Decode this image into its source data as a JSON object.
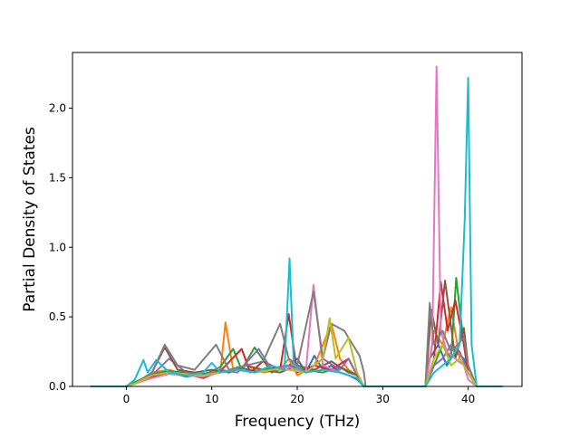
{
  "chart_data": {
    "type": "line",
    "title": "",
    "xlabel": "Frequency (THz)",
    "ylabel": "Partial Density of States",
    "xlim": [
      -6.3,
      46.3
    ],
    "ylim": [
      0,
      2.4
    ],
    "xticks": [
      0,
      10,
      20,
      30,
      40
    ],
    "yticks": [
      0.0,
      0.5,
      1.0,
      1.5,
      2.0
    ],
    "xtick_labels": [
      "0",
      "10",
      "20",
      "30",
      "40"
    ],
    "ytick_labels": [
      "0.0",
      "0.5",
      "1.0",
      "1.5",
      "2.0"
    ],
    "grid": false,
    "legend": "none",
    "colors": [
      "#1f77b4",
      "#ff7f0e",
      "#2ca02c",
      "#d62728",
      "#9467bd",
      "#8c564b",
      "#e377c2",
      "#7f7f7f",
      "#bcbd22",
      "#17becf"
    ],
    "series": [
      {
        "color": "#1f77b4",
        "x": [
          -4.2,
          0,
          1,
          3,
          5,
          7,
          9,
          11,
          12,
          13,
          15,
          17,
          19,
          20,
          21,
          22,
          23,
          24,
          25,
          26,
          27,
          27.8,
          28,
          35,
          35.5,
          36.5,
          37.5,
          38.5,
          39.5,
          40,
          41,
          44
        ],
        "y": [
          0,
          0,
          0.03,
          0.08,
          0.1,
          0.07,
          0.09,
          0.12,
          0.1,
          0.14,
          0.11,
          0.13,
          0.15,
          0.2,
          0.1,
          0.22,
          0.12,
          0.15,
          0.1,
          0.08,
          0.05,
          0,
          0,
          0,
          0.2,
          0.3,
          0.15,
          0.25,
          0.2,
          0.1,
          0,
          0
        ]
      },
      {
        "color": "#ff7f0e",
        "x": [
          -4.2,
          0,
          1,
          3,
          5,
          7,
          9,
          11,
          11.6,
          12.5,
          14,
          16,
          18,
          19,
          20,
          22,
          24,
          25,
          26,
          27,
          27.8,
          28,
          35,
          36,
          37,
          38,
          39,
          40,
          41,
          44
        ],
        "y": [
          0,
          0,
          0.02,
          0.1,
          0.12,
          0.08,
          0.07,
          0.1,
          0.46,
          0.12,
          0.15,
          0.1,
          0.12,
          0.2,
          0.08,
          0.15,
          0.45,
          0.2,
          0.12,
          0.08,
          0,
          0,
          0,
          0.4,
          0.3,
          0.57,
          0.2,
          0.1,
          0,
          0
        ]
      },
      {
        "color": "#2ca02c",
        "x": [
          -4.2,
          0,
          1,
          3,
          5,
          7,
          9,
          11,
          12.5,
          13.5,
          15,
          17,
          19,
          21,
          23,
          25,
          27,
          27.8,
          28,
          35,
          36,
          37,
          38,
          38.6,
          39.5,
          40,
          41,
          44
        ],
        "y": [
          0,
          0,
          0.03,
          0.09,
          0.11,
          0.1,
          0.08,
          0.14,
          0.27,
          0.12,
          0.28,
          0.1,
          0.15,
          0.12,
          0.1,
          0.14,
          0.08,
          0,
          0,
          0,
          0.15,
          0.3,
          0.2,
          0.78,
          0.3,
          0.1,
          0,
          0
        ]
      },
      {
        "color": "#d62728",
        "x": [
          -4.2,
          0,
          1,
          3,
          5,
          7,
          9,
          11,
          13.5,
          14.5,
          16,
          18,
          19,
          20,
          22,
          24,
          26,
          27,
          27.8,
          28,
          35,
          36,
          36.8,
          37.6,
          38.5,
          39.5,
          40,
          41,
          44
        ],
        "y": [
          0,
          0,
          0.02,
          0.07,
          0.1,
          0.09,
          0.06,
          0.11,
          0.27,
          0.1,
          0.18,
          0.12,
          0.52,
          0.1,
          0.15,
          0.12,
          0.2,
          0.08,
          0,
          0,
          0,
          0.2,
          0.75,
          0.4,
          0.62,
          0.3,
          0.1,
          0,
          0
        ]
      },
      {
        "color": "#9467bd",
        "x": [
          -4.2,
          0,
          1,
          3,
          5,
          7,
          9,
          11,
          13,
          15.5,
          17,
          19,
          21,
          23,
          25,
          26,
          27,
          27.8,
          28,
          35,
          36,
          37,
          38,
          39,
          40,
          41,
          44
        ],
        "y": [
          0,
          0,
          0.02,
          0.08,
          0.2,
          0.1,
          0.08,
          0.12,
          0.1,
          0.27,
          0.12,
          0.15,
          0.1,
          0.2,
          0.12,
          0.2,
          0.08,
          0,
          0,
          0,
          0.15,
          0.2,
          0.3,
          0.25,
          0.1,
          0,
          0
        ]
      },
      {
        "color": "#8c564b",
        "x": [
          -4.2,
          0,
          1,
          3,
          4.5,
          6,
          8,
          10,
          12,
          14,
          16,
          18,
          20,
          22,
          24,
          26,
          27,
          27.8,
          28,
          35,
          35.7,
          36.5,
          37.3,
          38.5,
          39.5,
          40,
          41,
          44
        ],
        "y": [
          0,
          0,
          0.02,
          0.1,
          0.28,
          0.12,
          0.1,
          0.12,
          0.1,
          0.15,
          0.12,
          0.1,
          0.15,
          0.12,
          0.18,
          0.1,
          0.08,
          0,
          0,
          0,
          0.55,
          0.3,
          0.76,
          0.2,
          0.42,
          0.15,
          0,
          0
        ]
      },
      {
        "color": "#e377c2",
        "x": [
          -4.2,
          0,
          1,
          3,
          5,
          7,
          9,
          11,
          13,
          15,
          17,
          19,
          21,
          21.9,
          23,
          25,
          27,
          27.8,
          28,
          35,
          35.8,
          36.3,
          36.8,
          37.5,
          38.5,
          39.5,
          40,
          41,
          44
        ],
        "y": [
          0,
          0,
          0.02,
          0.06,
          0.09,
          0.08,
          0.07,
          0.1,
          0.12,
          0.1,
          0.12,
          0.14,
          0.1,
          0.73,
          0.15,
          0.1,
          0.06,
          0,
          0,
          0,
          0.3,
          2.3,
          0.4,
          0.25,
          0.2,
          0.15,
          0.05,
          0,
          0
        ]
      },
      {
        "color": "#7f7f7f",
        "x": [
          -4.2,
          0,
          1,
          3,
          4.5,
          6,
          8,
          10.5,
          12,
          14,
          16,
          18,
          19,
          20,
          21.9,
          23,
          24,
          25.5,
          26.5,
          27.3,
          27.8,
          28,
          35,
          35.5,
          36,
          37,
          38,
          39.5,
          40,
          41,
          44
        ],
        "y": [
          0,
          0,
          0.02,
          0.1,
          0.3,
          0.15,
          0.12,
          0.3,
          0.12,
          0.15,
          0.18,
          0.45,
          0.2,
          0.15,
          0.68,
          0.2,
          0.45,
          0.4,
          0.3,
          0.22,
          0.1,
          0,
          0,
          0.6,
          0.3,
          0.4,
          0.25,
          0.35,
          0.15,
          0,
          0
        ]
      },
      {
        "color": "#bcbd22",
        "x": [
          -4.2,
          0,
          1,
          3,
          5,
          7,
          9,
          11,
          13,
          15,
          17,
          19,
          21,
          23,
          23.8,
          24.5,
          26,
          27,
          27.8,
          28,
          35,
          36,
          37,
          38,
          39,
          40,
          41,
          44
        ],
        "y": [
          0,
          0,
          0.02,
          0.08,
          0.1,
          0.09,
          0.08,
          0.1,
          0.12,
          0.1,
          0.12,
          0.12,
          0.1,
          0.2,
          0.49,
          0.2,
          0.35,
          0.1,
          0,
          0,
          0,
          0.2,
          0.3,
          0.15,
          0.2,
          0.1,
          0,
          0
        ]
      },
      {
        "color": "#17becf",
        "x": [
          -4.2,
          0,
          1,
          2,
          2.5,
          3.5,
          5,
          7,
          9,
          10,
          11,
          13,
          15,
          17,
          18.5,
          19.1,
          19.6,
          21,
          23,
          25,
          27,
          27.8,
          28,
          35,
          36,
          37,
          38,
          39,
          39.6,
          40,
          40.4,
          41,
          44
        ],
        "y": [
          0,
          0,
          0.05,
          0.19,
          0.1,
          0.19,
          0.1,
          0.08,
          0.1,
          0.17,
          0.1,
          0.12,
          0.1,
          0.15,
          0.12,
          0.92,
          0.15,
          0.1,
          0.12,
          0.1,
          0.06,
          0,
          0,
          0,
          0.1,
          0.15,
          0.2,
          0.3,
          1.2,
          2.22,
          0.3,
          0,
          0
        ]
      }
    ]
  }
}
